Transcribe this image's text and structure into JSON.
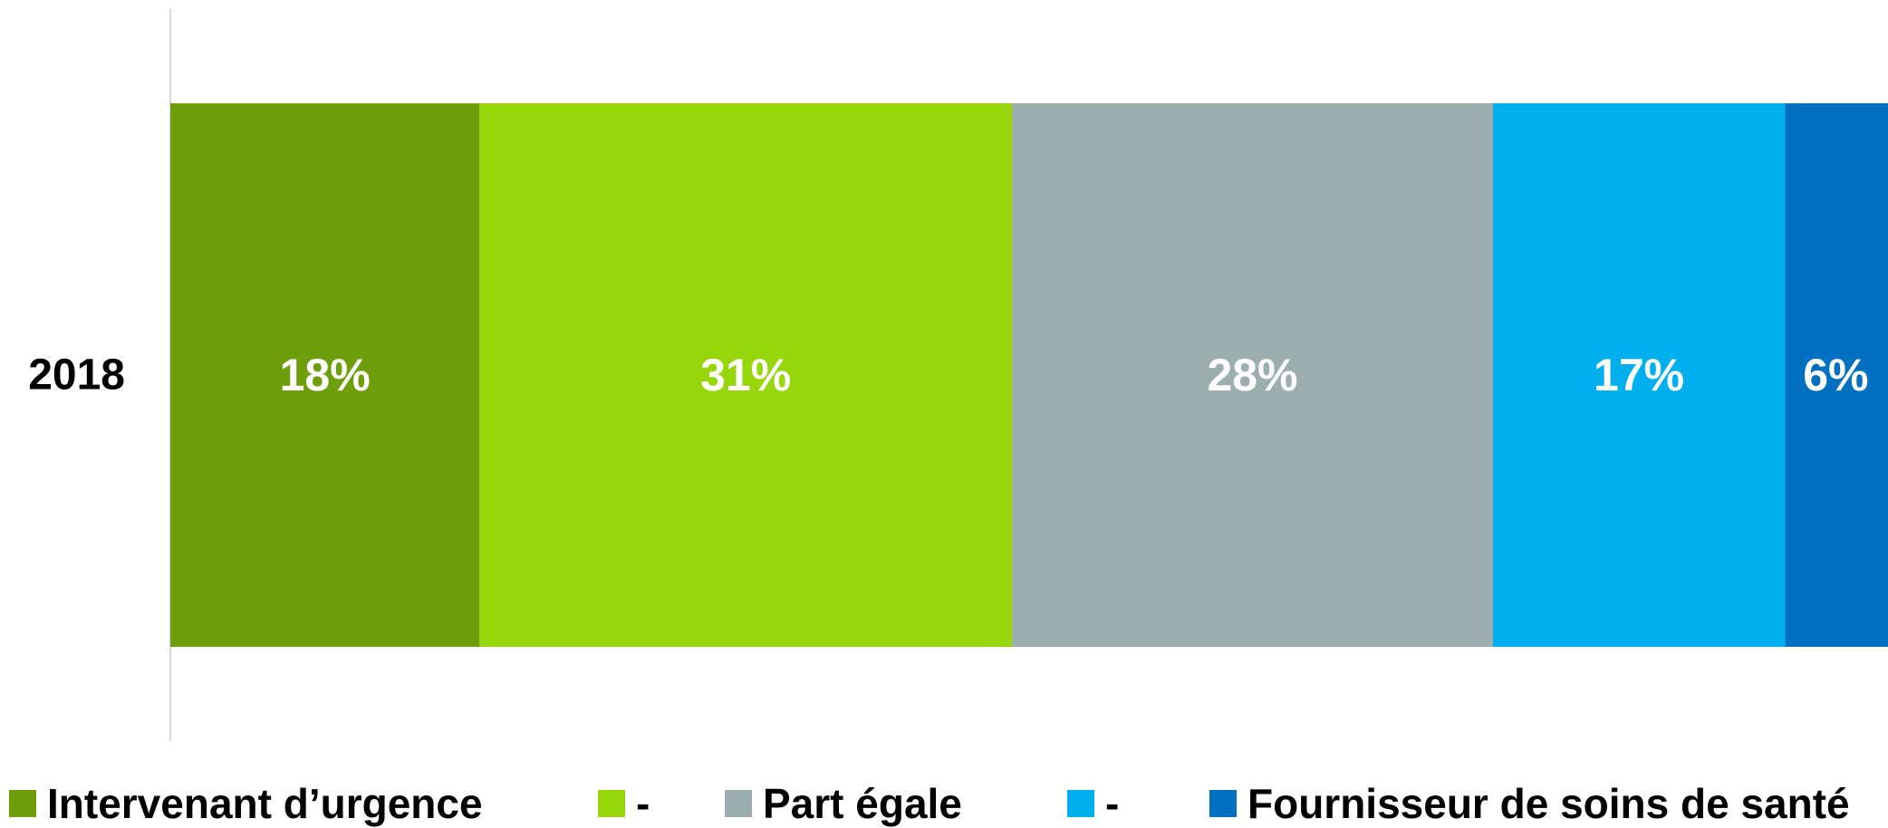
{
  "chart_data": {
    "type": "bar",
    "orientation": "horizontal",
    "stacked": true,
    "categories": [
      "2018"
    ],
    "series": [
      {
        "name": "Intervenant d’urgence",
        "values": [
          18
        ],
        "label": "18%",
        "color": "#6e9e0b"
      },
      {
        "name": "-",
        "values": [
          31
        ],
        "label": "31%",
        "color": "#96d60a"
      },
      {
        "name": "Part égale",
        "values": [
          28
        ],
        "label": "28%",
        "color": "#9caeae"
      },
      {
        "name": "-",
        "values": [
          17
        ],
        "label": "17%",
        "color": "#00b0ee"
      },
      {
        "name": "Fournisseur de soins de santé",
        "values": [
          6
        ],
        "label": "6%",
        "color": "#0070c0"
      }
    ],
    "xlim": [
      0,
      100
    ],
    "grid": false,
    "legend_position": "bottom"
  }
}
